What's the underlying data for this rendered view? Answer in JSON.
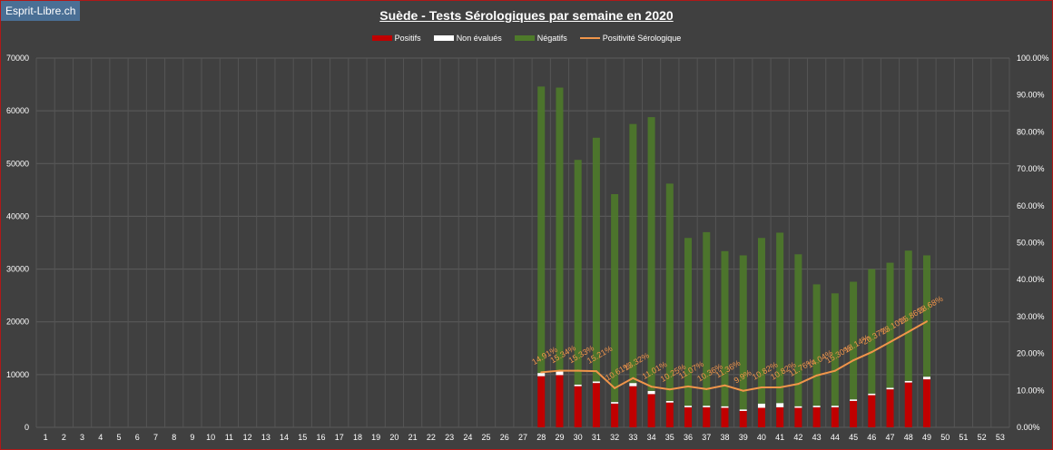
{
  "brand": "Esprit-Libre.ch",
  "colors": {
    "positive": "#c00000",
    "unevaluated": "#ffffff",
    "negative": "#4e7a2a",
    "line": "#f0954a"
  },
  "chart_data": {
    "type": "bar",
    "title": "Suède - Tests Sérologiques par semaine en 2020",
    "stacked": true,
    "categories": [
      "1",
      "2",
      "3",
      "4",
      "5",
      "6",
      "7",
      "8",
      "9",
      "10",
      "11",
      "12",
      "13",
      "14",
      "15",
      "16",
      "17",
      "18",
      "19",
      "20",
      "21",
      "22",
      "23",
      "24",
      "25",
      "26",
      "27",
      "28",
      "29",
      "30",
      "31",
      "32",
      "33",
      "34",
      "35",
      "36",
      "37",
      "38",
      "39",
      "40",
      "41",
      "42",
      "43",
      "44",
      "45",
      "46",
      "47",
      "48",
      "49",
      "50",
      "51",
      "52",
      "53"
    ],
    "series": [
      {
        "name": "Positifs",
        "type": "bar",
        "values": [
          null,
          null,
          null,
          null,
          null,
          null,
          null,
          null,
          null,
          null,
          null,
          null,
          null,
          null,
          null,
          null,
          null,
          null,
          null,
          null,
          null,
          null,
          null,
          null,
          null,
          null,
          null,
          9700,
          9900,
          7800,
          8400,
          4500,
          7800,
          6300,
          4700,
          3800,
          3800,
          3700,
          3100,
          3700,
          3800,
          3700,
          3800,
          3800,
          5000,
          6100,
          7200,
          8500,
          9100,
          null,
          null,
          null,
          null
        ]
      },
      {
        "name": "Non évalués",
        "type": "bar",
        "values": [
          null,
          null,
          null,
          null,
          null,
          null,
          null,
          null,
          null,
          null,
          null,
          null,
          null,
          null,
          null,
          null,
          null,
          null,
          null,
          null,
          null,
          null,
          null,
          null,
          null,
          null,
          null,
          600,
          700,
          300,
          300,
          300,
          600,
          600,
          300,
          300,
          300,
          300,
          300,
          800,
          800,
          300,
          300,
          300,
          300,
          300,
          300,
          300,
          500,
          null,
          null,
          null,
          null
        ]
      },
      {
        "name": "Négatifs",
        "type": "bar",
        "values": [
          null,
          null,
          null,
          null,
          null,
          null,
          null,
          null,
          null,
          null,
          null,
          null,
          null,
          null,
          null,
          null,
          null,
          null,
          null,
          null,
          null,
          null,
          null,
          null,
          null,
          null,
          null,
          54300,
          53800,
          42600,
          46200,
          39400,
          49100,
          51900,
          41200,
          31800,
          32900,
          29400,
          29200,
          31400,
          32300,
          28800,
          23000,
          21300,
          22300,
          23600,
          23700,
          24700,
          23000,
          null,
          null,
          null,
          null
        ]
      },
      {
        "name": "Positivité Sérologique",
        "type": "line",
        "axis": "right",
        "values": [
          null,
          null,
          null,
          null,
          null,
          null,
          null,
          null,
          null,
          null,
          null,
          null,
          null,
          null,
          null,
          null,
          null,
          null,
          null,
          null,
          null,
          null,
          null,
          null,
          null,
          null,
          null,
          14.91,
          15.34,
          15.33,
          15.21,
          10.61,
          13.32,
          11.01,
          10.25,
          11.07,
          10.36,
          11.36,
          9.9,
          10.82,
          10.82,
          11.76,
          14.04,
          15.3,
          18.14,
          20.37,
          23.1,
          25.86,
          28.68,
          null,
          null,
          null,
          null
        ],
        "labels": [
          null,
          null,
          null,
          null,
          null,
          null,
          null,
          null,
          null,
          null,
          null,
          null,
          null,
          null,
          null,
          null,
          null,
          null,
          null,
          null,
          null,
          null,
          null,
          null,
          null,
          null,
          null,
          "14.91%",
          "15.34%",
          "15.33%",
          "15.21%",
          "10.61%",
          "13.32%",
          "11.01%",
          "10.25%",
          "11.07%",
          "10.36%",
          "11.36%",
          "9.9%",
          "10.82%",
          "10.82%",
          "11.76%",
          "14.04%",
          "15.30%",
          "18.14%",
          "20.37%",
          "23.10%",
          "25.86%",
          "28.68%",
          null,
          null,
          null,
          null
        ]
      }
    ],
    "y_left": {
      "min": 0,
      "max": 70000,
      "ticks": [
        "0",
        "10000",
        "20000",
        "30000",
        "40000",
        "50000",
        "60000",
        "70000"
      ]
    },
    "y_right": {
      "min": 0,
      "max": 100,
      "ticks": [
        "0.00%",
        "10.00%",
        "20.00%",
        "30.00%",
        "40.00%",
        "50.00%",
        "60.00%",
        "70.00%",
        "80.00%",
        "90.00%",
        "100.00%"
      ]
    },
    "grid": true,
    "legend_position": "top"
  }
}
